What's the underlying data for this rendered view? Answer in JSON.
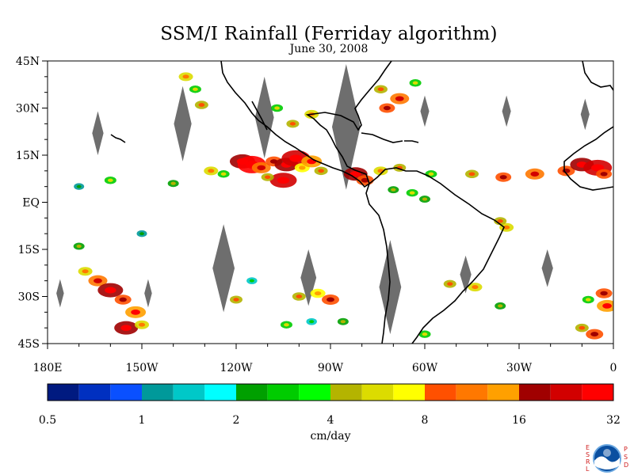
{
  "chart_data": {
    "type": "heatmap",
    "title": "SSM/I Rainfall (Ferriday algorithm)",
    "subtitle": "June 30, 2008",
    "lon_range": [
      -180,
      0
    ],
    "lat_range": [
      -45,
      45
    ],
    "x_ticks": [
      {
        "value": -180,
        "label": "180E"
      },
      {
        "value": -150,
        "label": "150W"
      },
      {
        "value": -120,
        "label": "120W"
      },
      {
        "value": -90,
        "label": "90W"
      },
      {
        "value": -60,
        "label": "60W"
      },
      {
        "value": -30,
        "label": "30W"
      },
      {
        "value": 0,
        "label": "0"
      }
    ],
    "y_ticks": [
      {
        "value": 45,
        "label": "45N"
      },
      {
        "value": 30,
        "label": "30N"
      },
      {
        "value": 15,
        "label": "15N"
      },
      {
        "value": 0,
        "label": "EQ"
      },
      {
        "value": -15,
        "label": "15S"
      },
      {
        "value": -30,
        "label": "30S"
      },
      {
        "value": -45,
        "label": "45S"
      }
    ],
    "colorbar": {
      "unit_label": "cm/day",
      "colors": [
        "#001a80",
        "#0030c0",
        "#0a50ff",
        "#00999a",
        "#00c8c8",
        "#00ffff",
        "#00a000",
        "#00cc00",
        "#00ff00",
        "#b4b400",
        "#dcdc00",
        "#ffff00",
        "#ff5000",
        "#ff7800",
        "#ffa000",
        "#a00000",
        "#d20000",
        "#ff0000"
      ],
      "tick_labels": [
        "0.5",
        "1",
        "2",
        "4",
        "8",
        "16",
        "32"
      ],
      "scale": "log2"
    },
    "rain_cells": [
      {
        "lon": -136,
        "lat": 40,
        "mm": 6
      },
      {
        "lon": -133,
        "lat": 36,
        "mm": 3
      },
      {
        "lon": -131,
        "lat": 31,
        "mm": 5
      },
      {
        "lon": -118,
        "lat": 13,
        "mm": 20
      },
      {
        "lon": -115,
        "lat": 12,
        "mm": 28
      },
      {
        "lon": -112,
        "lat": 11,
        "mm": 12
      },
      {
        "lon": -108,
        "lat": 13,
        "mm": 9
      },
      {
        "lon": -104,
        "lat": 12,
        "mm": 18
      },
      {
        "lon": -101,
        "lat": 14,
        "mm": 25
      },
      {
        "lon": -99,
        "lat": 11,
        "mm": 7
      },
      {
        "lon": -96,
        "lat": 13,
        "mm": 14
      },
      {
        "lon": -93,
        "lat": 10,
        "mm": 5
      },
      {
        "lon": -105,
        "lat": 7,
        "mm": 22
      },
      {
        "lon": -110,
        "lat": 8,
        "mm": 4
      },
      {
        "lon": -124,
        "lat": 9,
        "mm": 3
      },
      {
        "lon": -128,
        "lat": 10,
        "mm": 6
      },
      {
        "lon": -140,
        "lat": 6,
        "mm": 2
      },
      {
        "lon": -160,
        "lat": 7,
        "mm": 3
      },
      {
        "lon": -170,
        "lat": 5,
        "mm": 1
      },
      {
        "lon": -82,
        "lat": 9,
        "mm": 18
      },
      {
        "lon": -79,
        "lat": 7,
        "mm": 10
      },
      {
        "lon": -74,
        "lat": 10,
        "mm": 6
      },
      {
        "lon": -68,
        "lat": 11,
        "mm": 4
      },
      {
        "lon": -58,
        "lat": 9,
        "mm": 3
      },
      {
        "lon": -45,
        "lat": 9,
        "mm": 5
      },
      {
        "lon": -35,
        "lat": 8,
        "mm": 8
      },
      {
        "lon": -25,
        "lat": 9,
        "mm": 12
      },
      {
        "lon": -15,
        "lat": 10,
        "mm": 10
      },
      {
        "lon": -10,
        "lat": 12,
        "mm": 18
      },
      {
        "lon": -5,
        "lat": 11,
        "mm": 24
      },
      {
        "lon": -3,
        "lat": 9,
        "mm": 8
      },
      {
        "lon": -70,
        "lat": 4,
        "mm": 2
      },
      {
        "lon": -64,
        "lat": 3,
        "mm": 3
      },
      {
        "lon": -60,
        "lat": 1,
        "mm": 2
      },
      {
        "lon": -34,
        "lat": -8,
        "mm": 6
      },
      {
        "lon": -36,
        "lat": -6,
        "mm": 4
      },
      {
        "lon": -72,
        "lat": 30,
        "mm": 8
      },
      {
        "lon": -68,
        "lat": 33,
        "mm": 12
      },
      {
        "lon": -74,
        "lat": 36,
        "mm": 5
      },
      {
        "lon": -63,
        "lat": 38,
        "mm": 3
      },
      {
        "lon": -96,
        "lat": 28,
        "mm": 6
      },
      {
        "lon": -102,
        "lat": 25,
        "mm": 4
      },
      {
        "lon": -107,
        "lat": 30,
        "mm": 3
      },
      {
        "lon": -168,
        "lat": -22,
        "mm": 6
      },
      {
        "lon": -164,
        "lat": -25,
        "mm": 12
      },
      {
        "lon": -160,
        "lat": -28,
        "mm": 20
      },
      {
        "lon": -156,
        "lat": -31,
        "mm": 9
      },
      {
        "lon": -152,
        "lat": -35,
        "mm": 14
      },
      {
        "lon": -155,
        "lat": -40,
        "mm": 18
      },
      {
        "lon": -150,
        "lat": -39,
        "mm": 6
      },
      {
        "lon": -170,
        "lat": -14,
        "mm": 2
      },
      {
        "lon": -150,
        "lat": -10,
        "mm": 1
      },
      {
        "lon": -100,
        "lat": -30,
        "mm": 5
      },
      {
        "lon": -94,
        "lat": -29,
        "mm": 7
      },
      {
        "lon": -90,
        "lat": -31,
        "mm": 10
      },
      {
        "lon": -104,
        "lat": -39,
        "mm": 3
      },
      {
        "lon": -96,
        "lat": -38,
        "mm": 1.5
      },
      {
        "lon": -86,
        "lat": -38,
        "mm": 2
      },
      {
        "lon": -120,
        "lat": -31,
        "mm": 4
      },
      {
        "lon": -115,
        "lat": -25,
        "mm": 1.5
      },
      {
        "lon": -52,
        "lat": -26,
        "mm": 4
      },
      {
        "lon": -44,
        "lat": -27,
        "mm": 6
      },
      {
        "lon": -36,
        "lat": -33,
        "mm": 2
      },
      {
        "lon": -8,
        "lat": -31,
        "mm": 3
      },
      {
        "lon": -3,
        "lat": -29,
        "mm": 9
      },
      {
        "lon": -2,
        "lat": -33,
        "mm": 14
      },
      {
        "lon": -10,
        "lat": -40,
        "mm": 5
      },
      {
        "lon": -6,
        "lat": -42,
        "mm": 10
      },
      {
        "lon": -60,
        "lat": -42,
        "mm": 3
      }
    ],
    "no_data_swaths": [
      {
        "lon": -164,
        "lat": 22,
        "dlat": 7,
        "dlon": 1.8
      },
      {
        "lon": -137,
        "lat": 25,
        "dlat": 12,
        "dlon": 2.8
      },
      {
        "lon": -111,
        "lat": 27,
        "dlat": 13,
        "dlon": 3.0
      },
      {
        "lon": -85,
        "lat": 24,
        "dlat": 20,
        "dlon": 4.5
      },
      {
        "lon": -60,
        "lat": 29,
        "dlat": 5,
        "dlon": 1.4
      },
      {
        "lon": -34,
        "lat": 29,
        "dlat": 5,
        "dlon": 1.4
      },
      {
        "lon": -9,
        "lat": 28,
        "dlat": 5,
        "dlon": 1.4
      },
      {
        "lon": -176,
        "lat": -29,
        "dlat": 4.5,
        "dlon": 1.2
      },
      {
        "lon": -148,
        "lat": -29,
        "dlat": 4.5,
        "dlon": 1.2
      },
      {
        "lon": -124,
        "lat": -21,
        "dlat": 14,
        "dlon": 3.5
      },
      {
        "lon": -97,
        "lat": -24,
        "dlat": 9,
        "dlon": 2.5
      },
      {
        "lon": -71,
        "lat": -27,
        "dlat": 15,
        "dlon": 3.5
      },
      {
        "lon": -47,
        "lat": -23,
        "dlat": 6,
        "dlon": 1.8
      },
      {
        "lon": -21,
        "lat": -21,
        "dlat": 6,
        "dlon": 1.8
      }
    ]
  }
}
